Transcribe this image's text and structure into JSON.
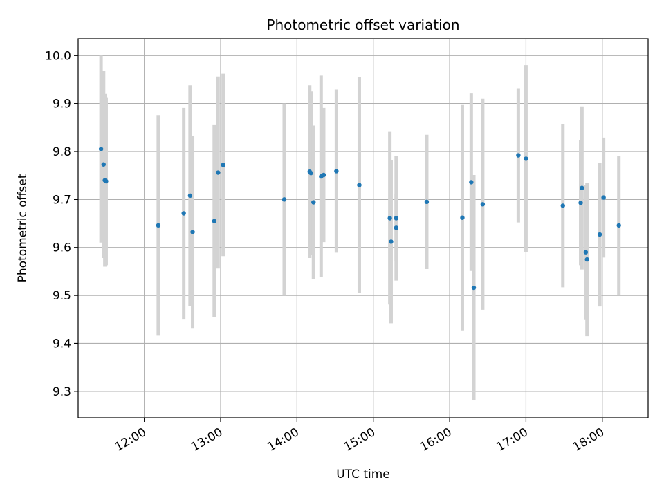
{
  "chart_data": {
    "type": "scatter",
    "title": "Photometric offset variation",
    "xlabel": "UTC time",
    "ylabel": "Photometric offset",
    "x_unit": "UTC time of day (HH:MM)",
    "xlim": [
      "11:08",
      "18:36"
    ],
    "ylim": [
      9.245,
      10.035
    ],
    "xticks": [
      "12:00",
      "13:00",
      "14:00",
      "15:00",
      "16:00",
      "17:00",
      "18:00"
    ],
    "yticks": [
      "9.3",
      "9.4",
      "9.5",
      "9.6",
      "9.7",
      "9.8",
      "9.9",
      "10.0"
    ],
    "grid": true,
    "legend": "none",
    "colors": {
      "marker": "#1f77b4",
      "errorbar": "#d3d3d3",
      "grid": "#b0b0b0"
    },
    "series": [
      {
        "points": [
          {
            "x": "11:26",
            "y": 9.805,
            "err": 0.195
          },
          {
            "x": "11:28",
            "y": 9.773,
            "err": 0.195
          },
          {
            "x": "11:29",
            "y": 9.74,
            "err": 0.18
          },
          {
            "x": "11:30",
            "y": 9.738,
            "err": 0.175
          },
          {
            "x": "12:11",
            "y": 9.646,
            "err": 0.23
          },
          {
            "x": "12:31",
            "y": 9.671,
            "err": 0.22
          },
          {
            "x": "12:36",
            "y": 9.708,
            "err": 0.23
          },
          {
            "x": "12:38",
            "y": 9.632,
            "err": 0.2
          },
          {
            "x": "12:55",
            "y": 9.655,
            "err": 0.2
          },
          {
            "x": "12:58",
            "y": 9.756,
            "err": 0.2
          },
          {
            "x": "13:02",
            "y": 9.772,
            "err": 0.19
          },
          {
            "x": "13:50",
            "y": 9.7,
            "err": 0.2
          },
          {
            "x": "14:10",
            "y": 9.758,
            "err": 0.18
          },
          {
            "x": "14:11",
            "y": 9.755,
            "err": 0.17
          },
          {
            "x": "14:13",
            "y": 9.694,
            "err": 0.16
          },
          {
            "x": "14:19",
            "y": 9.748,
            "err": 0.21
          },
          {
            "x": "14:21",
            "y": 9.751,
            "err": 0.14
          },
          {
            "x": "14:31",
            "y": 9.759,
            "err": 0.17
          },
          {
            "x": "14:49",
            "y": 9.73,
            "err": 0.225
          },
          {
            "x": "15:13",
            "y": 9.661,
            "err": 0.18
          },
          {
            "x": "15:14",
            "y": 9.612,
            "err": 0.17
          },
          {
            "x": "15:18",
            "y": 9.641,
            "err": 0.07
          },
          {
            "x": "15:18",
            "y": 9.661,
            "err": 0.13
          },
          {
            "x": "15:42",
            "y": 9.695,
            "err": 0.14
          },
          {
            "x": "16:10",
            "y": 9.662,
            "err": 0.235
          },
          {
            "x": "16:17",
            "y": 9.736,
            "err": 0.185
          },
          {
            "x": "16:19",
            "y": 9.516,
            "err": 0.235
          },
          {
            "x": "16:26",
            "y": 9.69,
            "err": 0.22
          },
          {
            "x": "16:54",
            "y": 9.792,
            "err": 0.14
          },
          {
            "x": "17:00",
            "y": 9.785,
            "err": 0.195
          },
          {
            "x": "17:29",
            "y": 9.687,
            "err": 0.17
          },
          {
            "x": "17:43",
            "y": 9.693,
            "err": 0.13
          },
          {
            "x": "17:44",
            "y": 9.724,
            "err": 0.17
          },
          {
            "x": "17:47",
            "y": 9.59,
            "err": 0.14
          },
          {
            "x": "17:48",
            "y": 9.575,
            "err": 0.16
          },
          {
            "x": "17:58",
            "y": 9.627,
            "err": 0.15
          },
          {
            "x": "18:01",
            "y": 9.704,
            "err": 0.125
          },
          {
            "x": "18:13",
            "y": 9.646,
            "err": 0.145
          }
        ]
      }
    ]
  }
}
